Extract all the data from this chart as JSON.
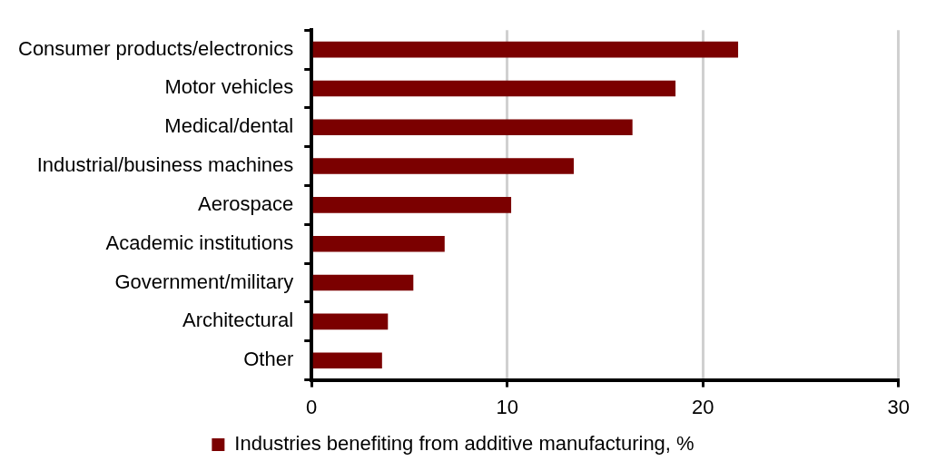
{
  "chart_data": {
    "type": "bar",
    "orientation": "horizontal",
    "categories": [
      "Consumer products/electronics",
      "Motor vehicles",
      "Medical/dental",
      "Industrial/business machines",
      "Aerospace",
      "Academic institutions",
      "Government/military",
      "Architectural",
      "Other"
    ],
    "series": [
      {
        "name": "Industries benefiting from additive manufacturing, %",
        "color": "#7b0000",
        "values": [
          21.8,
          18.6,
          16.4,
          13.4,
          10.2,
          6.8,
          5.2,
          3.9,
          3.6
        ]
      }
    ],
    "xlim": [
      0,
      30
    ],
    "xticks": [
      0,
      10,
      20,
      30
    ],
    "grid": "x",
    "legend": "bottom"
  }
}
